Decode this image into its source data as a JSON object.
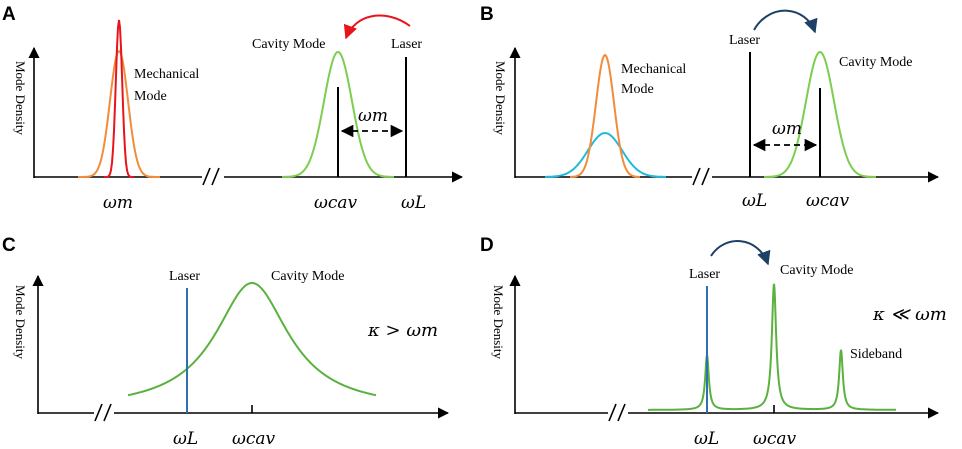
{
  "colors": {
    "red": "#e8141c",
    "orange": "#f28c3a",
    "green": "#7ccd50",
    "green_dark": "#5bb140",
    "cyan": "#22b8dd",
    "blue": "#2f6fb3",
    "navy": "#1e3f66",
    "black": "#000000"
  },
  "panels": {
    "A": {
      "label": "A",
      "y_label": "Mode Density",
      "mechanical_mode": [
        "Mechanical",
        "Mode"
      ],
      "cavity_mode": "Cavity Mode",
      "laser": "Laser",
      "omega_m_arrow": "ωm",
      "ticks": [
        "ωm",
        "ωcav",
        "ωL"
      ]
    },
    "B": {
      "label": "B",
      "y_label": "Mode Density",
      "mechanical_mode": [
        "Mechanical",
        "Mode"
      ],
      "laser": "Laser",
      "cavity_mode": "Cavity Mode",
      "omega_m_arrow": "ωm",
      "ticks": [
        "ωL",
        "ωcav"
      ]
    },
    "C": {
      "label": "C",
      "y_label": "Mode Density",
      "laser": "Laser",
      "cavity_mode": "Cavity Mode",
      "relation": "κ > ωm",
      "ticks": [
        "ωL",
        "ωcav"
      ]
    },
    "D": {
      "label": "D",
      "y_label": "Mode Density",
      "laser": "Laser",
      "cavity_mode": "Cavity Mode",
      "sideband": "Sideband",
      "relation": "κ ≪ ωm",
      "ticks": [
        "ωL",
        "ωcav"
      ]
    }
  }
}
